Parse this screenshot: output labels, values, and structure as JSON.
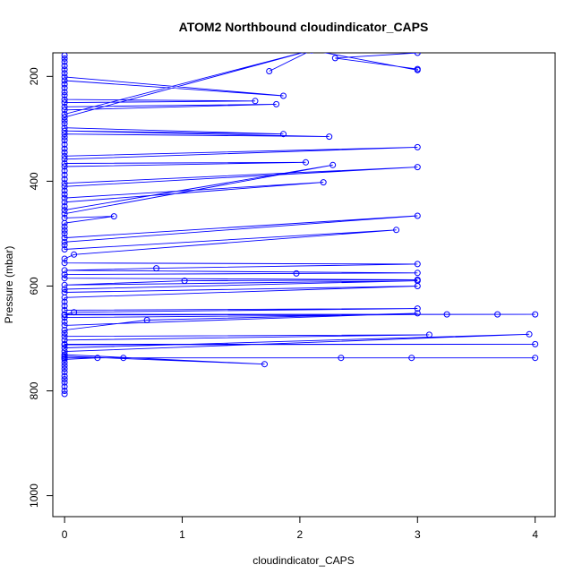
{
  "chart_data": {
    "type": "scatter",
    "title": "ATOM2 Northbound cloudindicator_CAPS",
    "xlabel": "cloudindicator_CAPS",
    "ylabel": "Pressure (mbar)",
    "xlim": [
      -0.1,
      4.17
    ],
    "ylim": [
      1040,
      155
    ],
    "y_inverted": true,
    "x_ticks": [
      0,
      1,
      2,
      3,
      4
    ],
    "y_ticks": [
      200,
      400,
      600,
      800,
      1000
    ],
    "grid": false,
    "legend": "none",
    "marker": "open-circle",
    "line_color": "#0000ff",
    "series": [
      {
        "points": [
          [
            0,
            806
          ],
          [
            0,
            800
          ],
          [
            0,
            792
          ],
          [
            0,
            784
          ],
          [
            0,
            778
          ],
          [
            0,
            772
          ],
          [
            0,
            764
          ],
          [
            0,
            758
          ],
          [
            0,
            752
          ],
          [
            0,
            746
          ],
          [
            0,
            740
          ],
          [
            0.28,
            737
          ],
          [
            0.5,
            737
          ],
          [
            0,
            737
          ],
          [
            2.35,
            737
          ],
          [
            2.95,
            737
          ],
          [
            4.0,
            737
          ],
          [
            0,
            737
          ],
          [
            0,
            734
          ],
          [
            1.7,
            749
          ],
          [
            0,
            731
          ],
          [
            0,
            725
          ],
          [
            3.95,
            692
          ],
          [
            0,
            718
          ],
          [
            0,
            712
          ],
          [
            4.0,
            711
          ],
          [
            0,
            711
          ],
          [
            0,
            703
          ],
          [
            3.1,
            693
          ],
          [
            0,
            696
          ],
          [
            0,
            690
          ],
          [
            0,
            684
          ],
          [
            0.7,
            665
          ],
          [
            3.0,
            652
          ],
          [
            0,
            675
          ],
          [
            0,
            668
          ],
          [
            0,
            660
          ],
          [
            3.25,
            654
          ],
          [
            0,
            655
          ],
          [
            4.0,
            654
          ],
          [
            3.68,
            654
          ],
          [
            0,
            654
          ],
          [
            0.08,
            650
          ],
          [
            3.0,
            643
          ],
          [
            0,
            646
          ],
          [
            0,
            638
          ],
          [
            0,
            630
          ],
          [
            0,
            622
          ],
          [
            3.0,
            600
          ],
          [
            0,
            612
          ],
          [
            0,
            606
          ],
          [
            3.0,
            590
          ],
          [
            0,
            598
          ],
          [
            1.02,
            590
          ],
          [
            3.0,
            588
          ],
          [
            0,
            585
          ],
          [
            0,
            578
          ],
          [
            1.97,
            576
          ],
          [
            3.0,
            575
          ],
          [
            0,
            570
          ],
          [
            0.78,
            566
          ],
          [
            3.0,
            558
          ],
          [
            0,
            556
          ],
          [
            0,
            548
          ],
          [
            0.08,
            540
          ],
          [
            2.82,
            493
          ],
          [
            0,
            530
          ],
          [
            0,
            522
          ],
          [
            0,
            516
          ],
          [
            3.0,
            466
          ],
          [
            0,
            508
          ],
          [
            0,
            500
          ],
          [
            0,
            494
          ],
          [
            0,
            487
          ],
          [
            0,
            480
          ],
          [
            0.42,
            467
          ],
          [
            0,
            470
          ],
          [
            0,
            462
          ],
          [
            2.28,
            369
          ],
          [
            0,
            455
          ],
          [
            0,
            448
          ],
          [
            0,
            440
          ],
          [
            2.2,
            402
          ],
          [
            0,
            432
          ],
          [
            0,
            425
          ],
          [
            0,
            418
          ],
          [
            0,
            410
          ],
          [
            3.0,
            373
          ],
          [
            0,
            404
          ],
          [
            0,
            396
          ],
          [
            0,
            388
          ],
          [
            0,
            380
          ],
          [
            0,
            372
          ],
          [
            2.05,
            364
          ],
          [
            0,
            366
          ],
          [
            0,
            358
          ],
          [
            3.0,
            335
          ],
          [
            0,
            352
          ],
          [
            0,
            345
          ],
          [
            0,
            338
          ],
          [
            0,
            330
          ],
          [
            0,
            322
          ],
          [
            0,
            316
          ],
          [
            0,
            310
          ],
          [
            2.25,
            315
          ],
          [
            0,
            304
          ],
          [
            1.86,
            310
          ],
          [
            0,
            298
          ],
          [
            0,
            290
          ],
          [
            0,
            284
          ],
          [
            0,
            278
          ],
          [
            2.1,
            150
          ],
          [
            0,
            272
          ],
          [
            0,
            264
          ],
          [
            1.8,
            253
          ],
          [
            0,
            258
          ],
          [
            0,
            250
          ],
          [
            1.62,
            247
          ],
          [
            0,
            244
          ],
          [
            0,
            236
          ],
          [
            0,
            230
          ],
          [
            0,
            222
          ],
          [
            0,
            215
          ],
          [
            0,
            208
          ],
          [
            1.86,
            237
          ],
          [
            0,
            201
          ],
          [
            0,
            194
          ],
          [
            0,
            187
          ],
          [
            0,
            180
          ],
          [
            0,
            172
          ],
          [
            0,
            166
          ],
          [
            0,
            160
          ]
        ]
      },
      {
        "points": [
          [
            1.74,
            190
          ],
          [
            2.1,
            150
          ],
          [
            3.0,
            188
          ],
          [
            3.0,
            186
          ],
          [
            2.3,
            165
          ],
          [
            3.0,
            155
          ]
        ]
      }
    ]
  }
}
